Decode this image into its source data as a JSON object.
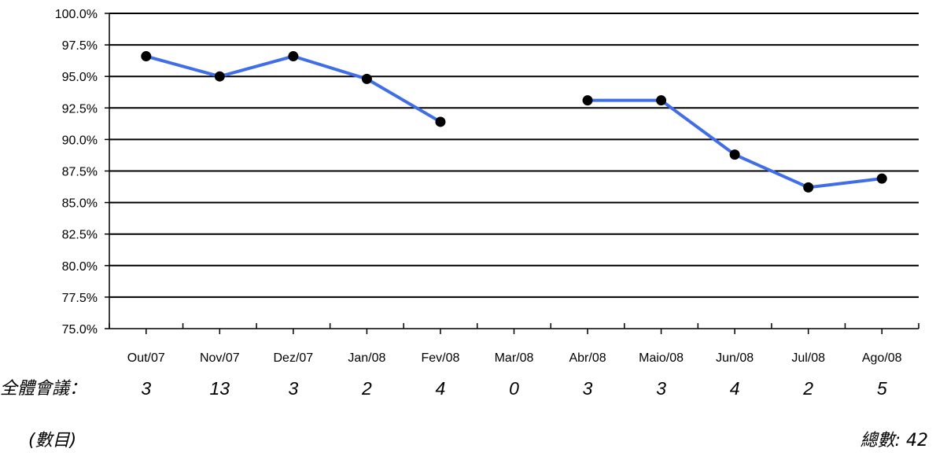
{
  "chart_data": {
    "type": "line",
    "title": "",
    "xlabel": "",
    "ylabel": "",
    "categories": [
      "Out/07",
      "Nov/07",
      "Dez/07",
      "Jan/08",
      "Fev/08",
      "Mar/08",
      "Abr/08",
      "Maio/08",
      "Jun/08",
      "Jul/08",
      "Ago/08"
    ],
    "series": [
      {
        "values": [
          96.6,
          95.0,
          96.6,
          94.8,
          91.4,
          null,
          93.1,
          93.1,
          88.8,
          86.2,
          86.9
        ],
        "color": "#3f6ee8",
        "marker_color": "#000000"
      }
    ],
    "ylim": [
      75.0,
      100.0
    ],
    "yticks": [
      "100.0%",
      "97.5%",
      "95.0%",
      "92.5%",
      "90.0%",
      "87.5%",
      "85.0%",
      "82.5%",
      "80.0%",
      "77.5%",
      "75.0%"
    ],
    "grid": true,
    "counts": {
      "label": "全體會議：",
      "values": [
        "3",
        "13",
        "3",
        "2",
        "4",
        "0",
        "3",
        "3",
        "4",
        "2",
        "5"
      ]
    }
  },
  "footer": {
    "unit_note": "(數目)",
    "total": "總數: 42"
  }
}
